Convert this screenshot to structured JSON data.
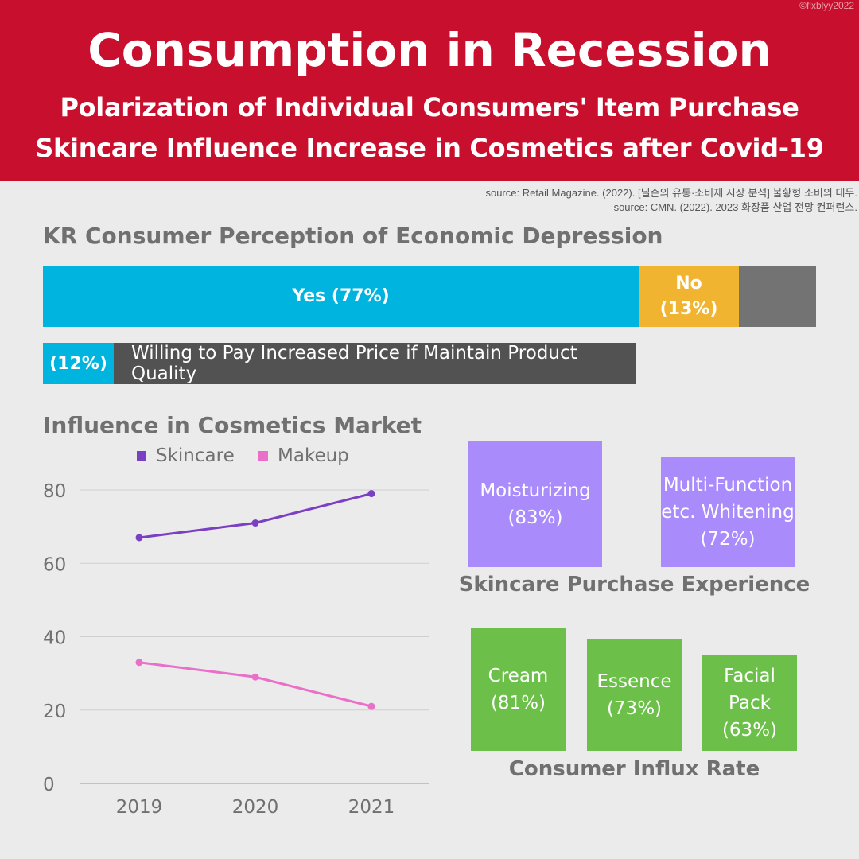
{
  "header": {
    "credit": "©flxblyy2022",
    "title": "Consumption in Recession",
    "subtitle1": "Polarization of Individual Consumers' Item Purchase",
    "subtitle2": "Skincare Influence Increase in Cosmetics after Covid-19"
  },
  "sources": {
    "line1": "source: Retail Magazine. (2022). [닐슨의 유통·소비재 시장 분석] 불황형 소비의 대두.",
    "line2": "source: CMN. (2022). 2023 화장품 산업 전망 컨퍼런스."
  },
  "perception": {
    "title": "KR Consumer Perception of Economic Depression",
    "segments": [
      {
        "label": "Yes (77%)",
        "value": 77,
        "color": "#00b4e0"
      },
      {
        "label": "No\n(13%)",
        "value": 13,
        "color": "#f0b431"
      },
      {
        "label": "",
        "value": 10,
        "color": "#737373"
      }
    ],
    "wtp_pct": "(12%)",
    "wtp_label": "Willing to Pay Increased Price if Maintain Product Quality",
    "wtp_value": 12
  },
  "influence": {
    "title": "Influence in Cosmetics Market"
  },
  "chart_data": {
    "type": "line",
    "title": "Influence in Cosmetics Market",
    "x": [
      "2019",
      "2020",
      "2021"
    ],
    "series": [
      {
        "name": "Skincare",
        "values": [
          67,
          71,
          79
        ],
        "color": "#7b3fc4"
      },
      {
        "name": "Makeup",
        "values": [
          33,
          29,
          21
        ],
        "color": "#ea6fc8"
      }
    ],
    "ylim": [
      0,
      80
    ],
    "yticks": [
      "0",
      "20",
      "40",
      "60",
      "80"
    ],
    "grid": true,
    "legend": "top"
  },
  "skincare_purchase": {
    "title": "Skincare Purchase Experience",
    "boxes": [
      {
        "label": "Moisturizing",
        "pct": "(83%)",
        "value": 83
      },
      {
        "label": "Multi-Function\netc. Whitening",
        "pct": "(72%)",
        "value": 72
      }
    ]
  },
  "influx": {
    "title": "Consumer Influx Rate",
    "boxes": [
      {
        "label": "Cream",
        "pct": "(81%)",
        "value": 81
      },
      {
        "label": "Essence",
        "pct": "(73%)",
        "value": 73
      },
      {
        "label": "Facial\nPack",
        "pct": "(63%)",
        "value": 63
      }
    ]
  }
}
